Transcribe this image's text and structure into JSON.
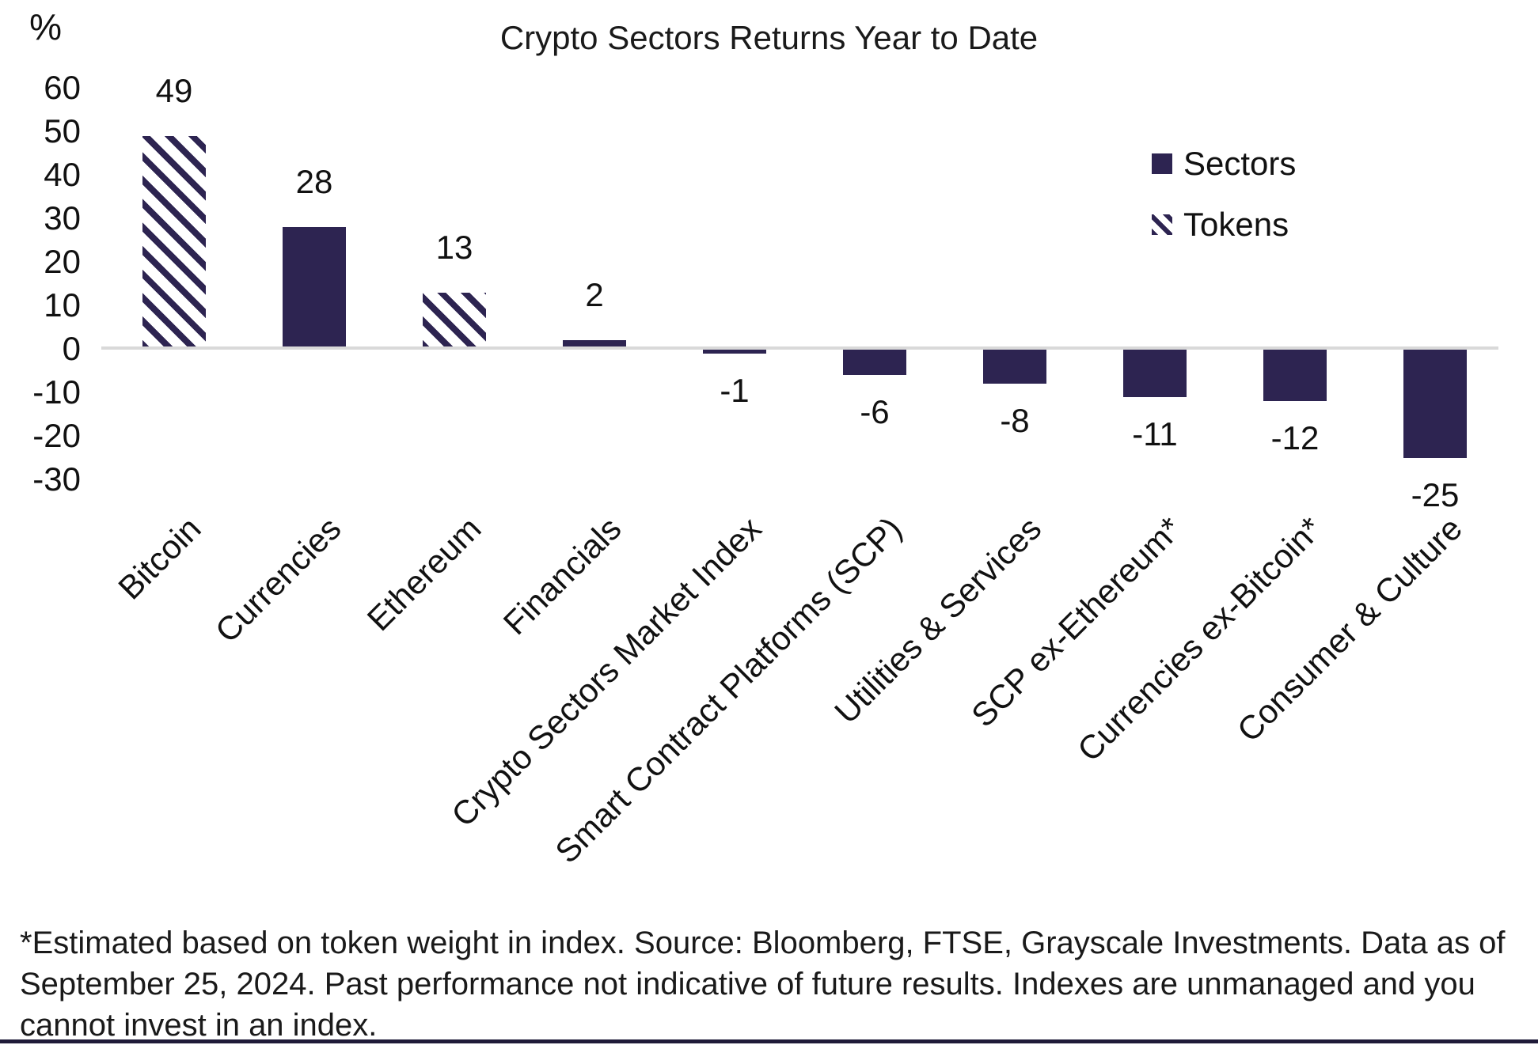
{
  "title": "Crypto Sectors Returns Year to Date",
  "legend": {
    "sectors_label": "Sectors",
    "tokens_label": "Tokens"
  },
  "chart_data": {
    "type": "bar",
    "title": "Crypto Sectors Returns Year to Date",
    "ylabel": "%",
    "ylim": [
      -30,
      60
    ],
    "ytick_values": [
      60,
      50,
      40,
      30,
      20,
      10,
      0,
      -10,
      -20,
      -30
    ],
    "ytick_labels": [
      "60",
      "50",
      "40",
      "30",
      "20",
      "10",
      "0",
      "-10",
      "-20",
      "-30"
    ],
    "grid": false,
    "legend_position": "upper right",
    "categories": [
      "Bitcoin",
      "Currencies",
      "Ethereum",
      "Financials",
      "Crypto Sectors Market Index",
      "Smart Contract Platforms (SCP)",
      "Utilities & Services",
      "SCP ex-Ethereum*",
      "Currencies ex-Bitcoin*",
      "Consumer & Culture"
    ],
    "values": [
      49,
      28,
      13,
      2,
      -1,
      -6,
      -8,
      -11,
      -12,
      -25
    ],
    "value_labels": [
      "49",
      "28",
      "13",
      "2",
      "-1",
      "-6",
      "-8",
      "-11",
      "-12",
      "-25"
    ],
    "styles": [
      "hatched",
      "solid",
      "hatched",
      "solid",
      "solid",
      "solid",
      "solid",
      "solid",
      "solid",
      "solid"
    ],
    "style_meaning": {
      "solid": "Sectors",
      "hatched": "Tokens"
    }
  },
  "footnote": "*Estimated based on token weight in index. Source: Bloomberg, FTSE, Grayscale Investments. Data as of September 25, 2024. Past performance not indicative of future results. Indexes are unmanaged and you cannot invest in an index.",
  "colors": {
    "bar": "#2D2451",
    "baseline": "#D9D9D9",
    "text": "#111111",
    "bottom_rule": "#1F1A38",
    "background": "#FFFFFF"
  }
}
